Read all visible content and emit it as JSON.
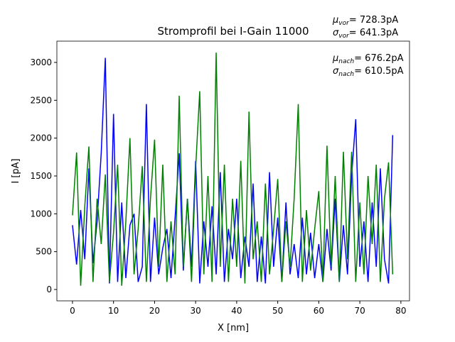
{
  "chart_data": {
    "type": "line",
    "title": "Stromprofil bei I-Gain 11000",
    "xlabel": "X [nm]",
    "ylabel": "I [pA]",
    "x": [
      0,
      1,
      2,
      3,
      4,
      5,
      6,
      7,
      8,
      9,
      10,
      11,
      12,
      13,
      14,
      15,
      16,
      17,
      18,
      19,
      20,
      21,
      22,
      23,
      24,
      25,
      26,
      27,
      28,
      29,
      30,
      31,
      32,
      33,
      34,
      35,
      36,
      37,
      38,
      39,
      40,
      41,
      42,
      43,
      44,
      45,
      46,
      47,
      48,
      49,
      50,
      51,
      52,
      53,
      54,
      55,
      56,
      57,
      58,
      59,
      60,
      61,
      62,
      63,
      64,
      65,
      66,
      67,
      68,
      69,
      70,
      71,
      72,
      73,
      74,
      75,
      76,
      77,
      78
    ],
    "series": [
      {
        "color": "#0000ff",
        "values": [
          850,
          330,
          1050,
          400,
          1600,
          350,
          900,
          1800,
          3060,
          80,
          2320,
          100,
          1150,
          150,
          850,
          1000,
          100,
          300,
          2450,
          100,
          950,
          200,
          550,
          800,
          150,
          950,
          1800,
          250,
          1200,
          300,
          1700,
          80,
          900,
          300,
          1100,
          200,
          1550,
          100,
          800,
          400,
          1200,
          150,
          700,
          300,
          1400,
          100,
          700,
          80,
          1550,
          300,
          950,
          100,
          1150,
          200,
          600,
          150,
          950,
          200,
          750,
          150,
          600,
          100,
          800,
          250,
          1200,
          100,
          850,
          200,
          1500,
          2250,
          300,
          900,
          100,
          1150,
          300,
          1600,
          400,
          80,
          2040
        ]
      },
      {
        "color": "#008000",
        "values": [
          980,
          1810,
          50,
          1100,
          1890,
          100,
          1200,
          600,
          1520,
          100,
          750,
          1650,
          50,
          900,
          2000,
          200,
          800,
          1630,
          100,
          1200,
          1980,
          300,
          1650,
          100,
          900,
          200,
          2560,
          300,
          1200,
          100,
          1600,
          2620,
          200,
          1500,
          100,
          3130,
          300,
          1650,
          100,
          1200,
          300,
          1700,
          80,
          2350,
          400,
          900,
          100,
          1400,
          200,
          800,
          1460,
          100,
          900,
          300,
          1200,
          2450,
          100,
          1050,
          250,
          800,
          1300,
          100,
          1900,
          300,
          1500,
          100,
          1820,
          400,
          1820,
          100,
          1150,
          200,
          1500,
          600,
          1650,
          100,
          1200,
          1680,
          200
        ]
      }
    ],
    "xlim": [
      -3.8,
      82.1
    ],
    "ylim": [
      -150,
      3281
    ],
    "xticks": [
      0,
      10,
      20,
      30,
      40,
      50,
      60,
      70,
      80
    ],
    "yticks": [
      0,
      500,
      1000,
      1500,
      2000,
      2500,
      3000
    ],
    "annotations": [
      {
        "symbol": "μ",
        "subscript": "vor",
        "text": "= 728.3pA"
      },
      {
        "symbol": "σ",
        "subscript": "vor",
        "text": "= 641.3pA"
      },
      {
        "symbol": "μ",
        "subscript": "nach",
        "text": "= 676.2pA"
      },
      {
        "symbol": "σ",
        "subscript": "nach",
        "text": "= 610.5pA"
      }
    ]
  }
}
